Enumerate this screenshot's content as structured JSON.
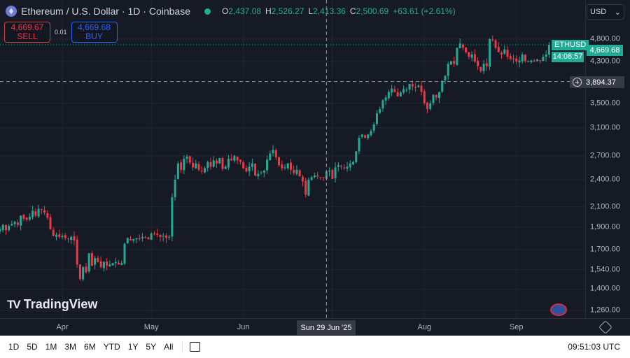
{
  "header": {
    "symbol_title": "Ethereum / U.S. Dollar · 1D · Coinbase",
    "status_icon": "market-open-dot",
    "ohlc": {
      "o_label": "O",
      "o": "2,437.08",
      "h_label": "H",
      "h": "2,526.27",
      "l_label": "L",
      "l": "2,413.36",
      "c_label": "C",
      "c": "2,500.69",
      "change": "+63.61 (+2.61%)"
    }
  },
  "trade": {
    "sell_price": "4,669.67",
    "sell_label": "SELL",
    "spread": "0.01",
    "buy_price": "4,669.68",
    "buy_label": "BUY"
  },
  "currency": {
    "selected": "USD"
  },
  "price_tag": {
    "symbol": "ETHUSD",
    "price": "4,669.68",
    "countdown": "14:08:57"
  },
  "crosshair": {
    "price": "3,894.37",
    "date": "Sun 29 Jun '25"
  },
  "logo": "TradingView",
  "colors": {
    "up": "#22ab94",
    "down": "#f23645",
    "background": "#161a25"
  },
  "chart_data": {
    "type": "candlestick",
    "scale": "log",
    "grid": true,
    "y_ticks": [
      "4,800.00",
      "4,300.00",
      "3,500.00",
      "3,100.00",
      "2,700.00",
      "2,400.00",
      "2,100.00",
      "1,900.00",
      "1,700.00",
      "1,540.00",
      "1,400.00",
      "1,260.00"
    ],
    "x_ticks": [
      "Apr",
      "May",
      "Jun",
      "Aug",
      "Sep"
    ],
    "first_date": "2025-03-11",
    "last_price": 4669.68,
    "crosshair_price": 3894.37,
    "closes": [
      1880,
      1920,
      1870,
      1910,
      1930,
      1950,
      1920,
      2010,
      1980,
      1970,
      2000,
      2060,
      2010,
      2080,
      2070,
      2040,
      1990,
      1880,
      1820,
      1830,
      1810,
      1820,
      1800,
      1790,
      1810,
      1780,
      1580,
      1470,
      1560,
      1520,
      1670,
      1570,
      1630,
      1600,
      1560,
      1600,
      1570,
      1580,
      1590,
      1600,
      1580,
      1590,
      1750,
      1800,
      1780,
      1790,
      1800,
      1790,
      1810,
      1800,
      1790,
      1840,
      1840,
      1830,
      1810,
      1820,
      1800,
      1810,
      2200,
      2400,
      2600,
      2520,
      2660,
      2690,
      2610,
      2550,
      2600,
      2520,
      2500,
      2540,
      2620,
      2560,
      2640,
      2600,
      2670,
      2530,
      2560,
      2660,
      2640,
      2700,
      2640,
      2620,
      2540,
      2500,
      2560,
      2600,
      2450,
      2470,
      2490,
      2510,
      2650,
      2730,
      2780,
      2680,
      2580,
      2540,
      2550,
      2600,
      2520,
      2480,
      2520,
      2440,
      2380,
      2230,
      2400,
      2430,
      2450,
      2440,
      2430,
      2420,
      2500,
      2510,
      2410,
      2550,
      2580,
      2560,
      2540,
      2560,
      2600,
      2620,
      2760,
      2950,
      3000,
      2950,
      3000,
      3050,
      3150,
      3330,
      3400,
      3550,
      3600,
      3700,
      3760,
      3700,
      3620,
      3690,
      3750,
      3740,
      3850,
      3800,
      3780,
      3820,
      3700,
      3500,
      3400,
      3500,
      3650,
      3600,
      3700,
      3900,
      4000,
      4250,
      4300,
      4250,
      4600,
      4700,
      4600,
      4500,
      4400,
      4450,
      4300,
      4200,
      4100,
      4250,
      4200,
      4800,
      4780,
      4600,
      4500,
      4450,
      4560,
      4400,
      4350,
      4350,
      4300,
      4320,
      4450,
      4310,
      4300,
      4320,
      4300,
      4340,
      4320,
      4400,
      4450,
      4670
    ]
  },
  "bottom": {
    "ranges": [
      "1D",
      "5D",
      "1M",
      "3M",
      "6M",
      "YTD",
      "1Y",
      "5Y",
      "All"
    ],
    "clock": "09:51:03 UTC"
  }
}
